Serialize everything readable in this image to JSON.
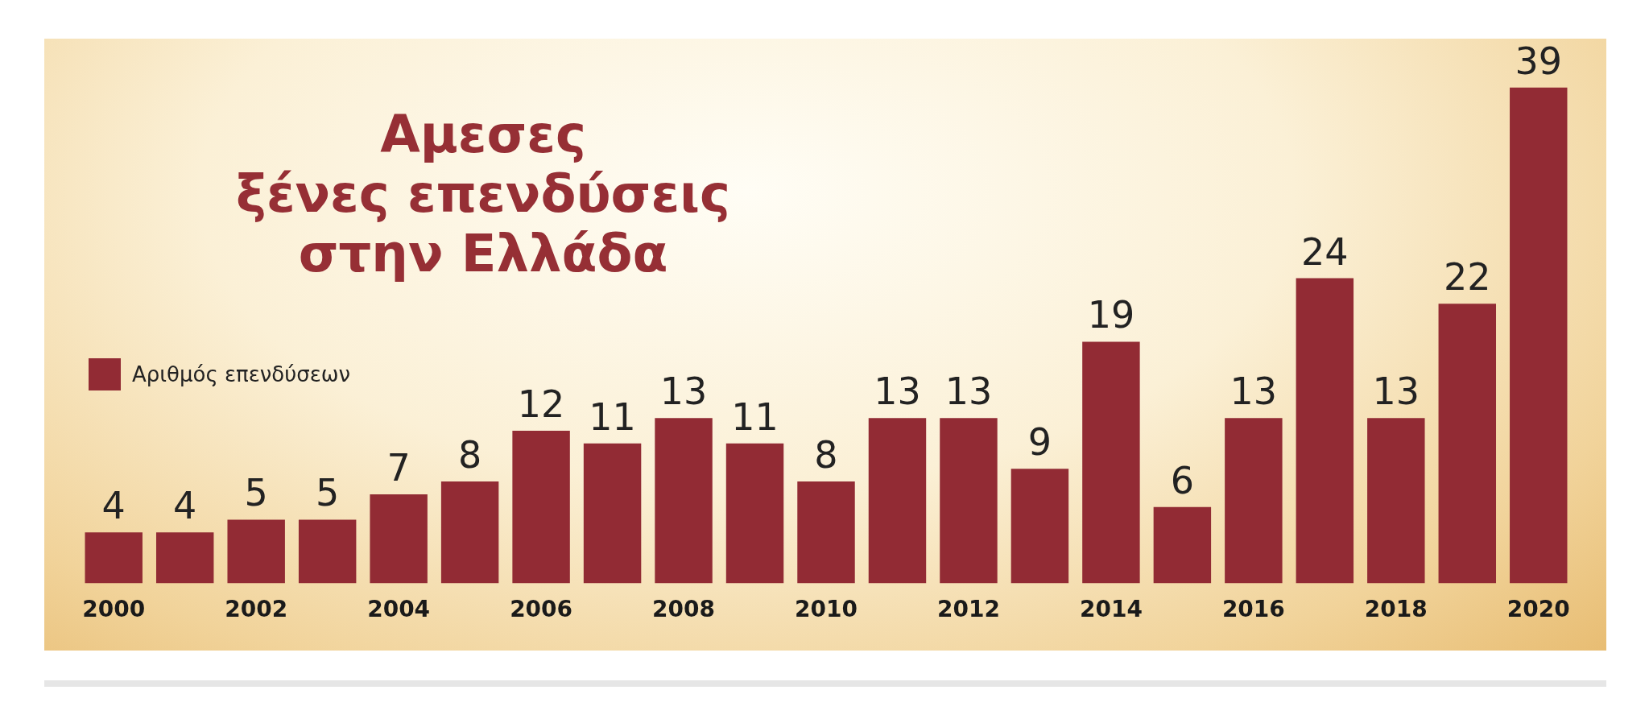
{
  "chart_data": {
    "type": "bar",
    "title": "Αμεσες\nξένες επενδύσεις\nστην Ελλάδα",
    "categories": [
      "2000",
      null,
      "2002",
      null,
      "2004",
      null,
      "2006",
      null,
      "2008",
      null,
      "2010",
      null,
      "2012",
      null,
      "2014",
      null,
      "2016",
      null,
      "2018",
      null,
      "2020"
    ],
    "series": [
      {
        "name": "Αριθμός επενδύσεων",
        "color": "#922b34",
        "values": [
          4,
          4,
          5,
          5,
          7,
          8,
          12,
          11,
          13,
          11,
          8,
          13,
          13,
          9,
          19,
          6,
          13,
          24,
          13,
          22,
          39
        ]
      }
    ],
    "data_labels": true,
    "legend": "left",
    "grid": false
  }
}
